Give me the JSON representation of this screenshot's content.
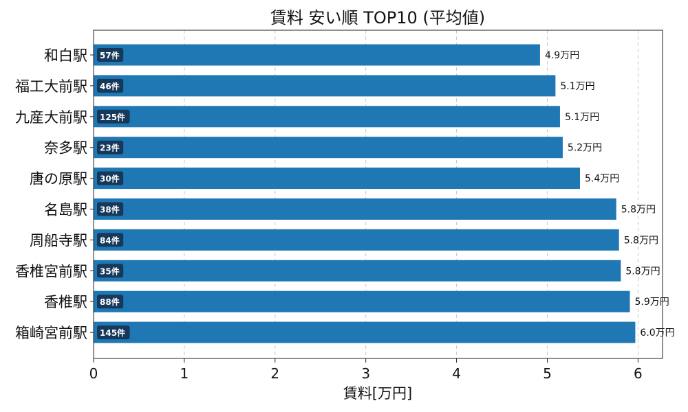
{
  "chart_data": {
    "type": "bar",
    "orientation": "horizontal",
    "title": "賃料 安い順 TOP10 (平均値)",
    "xlabel": "賃料[万円]",
    "ylabel": "",
    "xlim": [
      0,
      6.27
    ],
    "xticks": [
      "0",
      "1",
      "2",
      "3",
      "4",
      "5",
      "6"
    ],
    "grid": "x-dashed",
    "bar_color": "#1f77b4",
    "badge_color": "#16385a",
    "categories": [
      "和白駅",
      "福工大前駅",
      "九産大前駅",
      "奈多駅",
      "唐の原駅",
      "名島駅",
      "周船寺駅",
      "香椎宮前駅",
      "香椎駅",
      "箱崎宮前駅"
    ],
    "values": [
      4.92,
      5.09,
      5.14,
      5.17,
      5.36,
      5.76,
      5.79,
      5.81,
      5.91,
      5.97
    ],
    "value_labels": [
      "4.9万円",
      "5.1万円",
      "5.1万円",
      "5.2万円",
      "5.4万円",
      "5.8万円",
      "5.8万円",
      "5.8万円",
      "5.9万円",
      "6.0万円"
    ],
    "counts": [
      "57件",
      "46件",
      "125件",
      "23件",
      "30件",
      "38件",
      "84件",
      "35件",
      "88件",
      "145件"
    ]
  }
}
